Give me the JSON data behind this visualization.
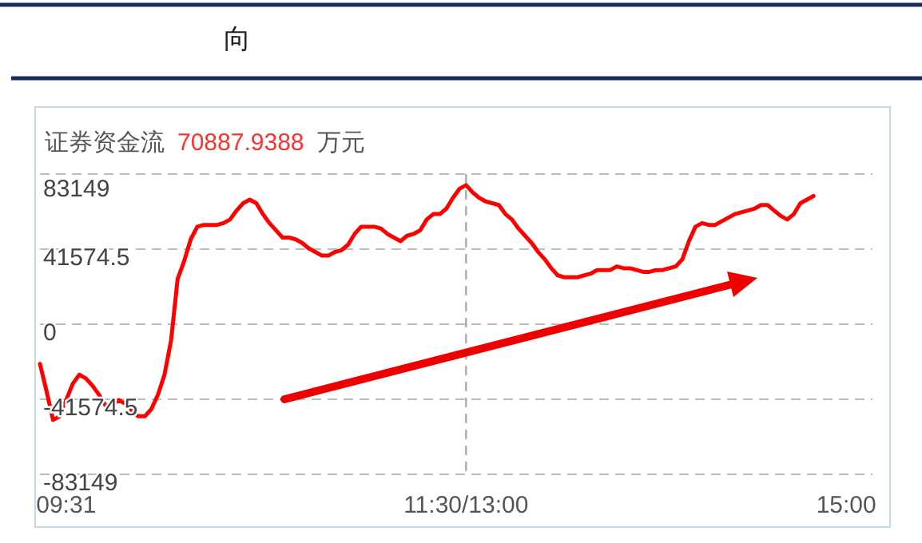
{
  "chart_data": {
    "type": "line",
    "title": "向",
    "subtitle": "证券资金流",
    "annotations": [
      "70887.9388",
      "万元"
    ],
    "categories": [
      null,
      null,
      null,
      null,
      "09:31",
      null,
      null,
      null,
      null,
      null,
      null,
      null,
      null,
      null,
      null,
      null,
      null,
      null,
      null,
      null,
      null,
      null,
      null,
      null,
      null,
      null,
      null,
      null,
      null,
      null,
      null,
      null,
      null,
      null,
      null,
      null,
      null,
      null,
      null,
      null,
      null,
      null,
      null,
      null,
      null,
      null,
      null,
      null,
      null,
      null,
      null,
      null,
      null,
      null,
      null,
      null,
      null,
      null,
      null,
      null,
      null,
      null,
      null,
      null,
      null,
      "11:30/13:00",
      null,
      null,
      null,
      null,
      null,
      null,
      null,
      null,
      null,
      null,
      null,
      null,
      null,
      null,
      null,
      null,
      null,
      null,
      null,
      null,
      null,
      null,
      null,
      null,
      null,
      null,
      null,
      null,
      null,
      null,
      null,
      null,
      null,
      null,
      null,
      null,
      null,
      null,
      null,
      null,
      null,
      null,
      null,
      null,
      null,
      null,
      null,
      null,
      null,
      null,
      null,
      null,
      null,
      null,
      null,
      null,
      null,
      "15:00",
      null,
      null,
      null,
      null
    ],
    "series": [
      {
        "color": "#ff0000",
        "values": [
          -22000,
          -37000,
          -53000,
          -51000,
          -42000,
          -33000,
          -28000,
          -30000,
          -34000,
          -39000,
          -45000,
          -45000,
          -42000,
          -44000,
          -48000,
          -51000,
          -51000,
          -47000,
          -39000,
          -28000,
          -9000,
          25000,
          35000,
          47000,
          54000,
          55000,
          55000,
          55000,
          56000,
          58000,
          63000,
          67000,
          69000,
          67000,
          61000,
          56000,
          52000,
          48000,
          48000,
          47000,
          45000,
          42000,
          40000,
          38000,
          38000,
          40000,
          41000,
          44000,
          50000,
          54000,
          54000,
          54000,
          53000,
          50000,
          48000,
          46000,
          49000,
          50000,
          52000,
          58000,
          61000,
          61000,
          64000,
          70000,
          75000,
          77000,
          73000,
          70000,
          68000,
          67000,
          66000,
          61000,
          58000,
          53000,
          49000,
          45000,
          40000,
          36000,
          31000,
          27000,
          26000,
          26000,
          26000,
          27000,
          28000,
          30000,
          30000,
          30000,
          32000,
          31000,
          31000,
          30000,
          29000,
          29000,
          30000,
          30000,
          31000,
          32000,
          36000,
          46000,
          54000,
          56000,
          55000,
          55000,
          57000,
          59000,
          61000,
          62000,
          63000,
          64000,
          66000,
          66000,
          63000,
          60000,
          58000,
          61000,
          67000,
          69000,
          71000,
          null,
          null,
          null,
          null,
          null,
          null,
          null,
          null,
          null
        ]
      }
    ],
    "ylim": [
      -83149,
      83149
    ],
    "yticks": [
      -83149,
      -41574.5,
      0,
      41574.5,
      83149
    ],
    "grid": "y",
    "ref_lines": [
      {
        "axis": "x",
        "value": "11:30/13:00",
        "line_style": "dashed",
        "color": "#aaaaaa"
      }
    ],
    "marker": "none",
    "line_style": "solid"
  }
}
